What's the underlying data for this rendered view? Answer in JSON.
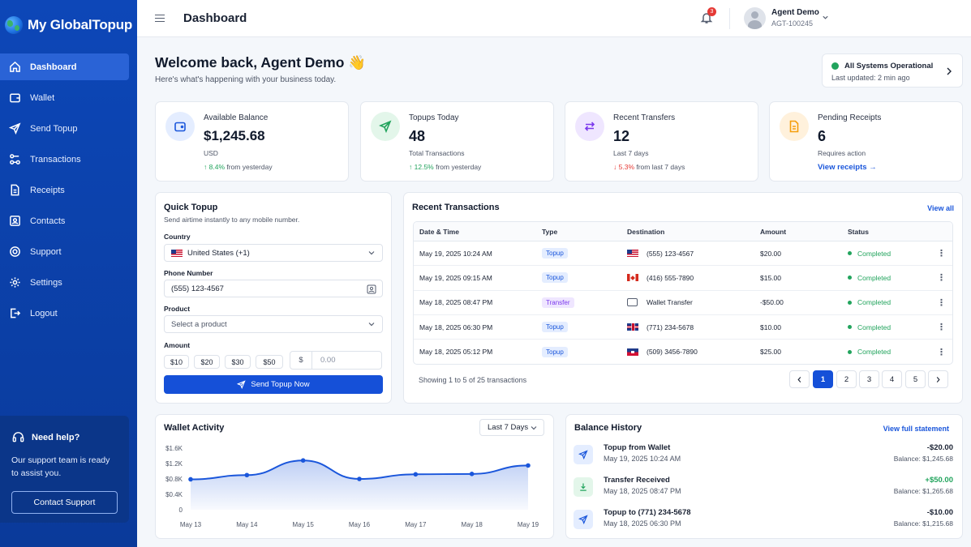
{
  "brand": {
    "name": "My GlobalTopup"
  },
  "sidebar": {
    "items": [
      {
        "label": "Dashboard",
        "icon": "home-icon"
      },
      {
        "label": "Wallet",
        "icon": "wallet-icon"
      },
      {
        "label": "Send Topup",
        "icon": "send-icon"
      },
      {
        "label": "Transactions",
        "icon": "transactions-icon"
      },
      {
        "label": "Receipts",
        "icon": "receipt-icon"
      },
      {
        "label": "Contacts",
        "icon": "contacts-icon"
      },
      {
        "label": "Support",
        "icon": "support-icon"
      },
      {
        "label": "Settings",
        "icon": "gear-icon"
      },
      {
        "label": "Logout",
        "icon": "logout-icon"
      }
    ],
    "help": {
      "title": "Need help?",
      "text": "Our support team is ready to assist you.",
      "button": "Contact Support"
    }
  },
  "header": {
    "title": "Dashboard",
    "notifications": "3",
    "user_name": "Agent Demo",
    "user_id": "AGT-100245"
  },
  "welcome": {
    "title": "Welcome back, Agent Demo 👋",
    "subtitle": "Here's what's happening with your business today."
  },
  "system_status": {
    "title": "All Systems Operational",
    "updated": "Last updated: 2 min ago"
  },
  "stats": [
    {
      "label": "Available Balance",
      "value": "$1,245.68",
      "sub": "USD",
      "trend_arrow": "↑",
      "trend_value": "8.4%",
      "trend_text": " from yesterday",
      "color": "#1a56db"
    },
    {
      "label": "Topups Today",
      "value": "48",
      "sub": "Total Transactions",
      "trend_arrow": "↑",
      "trend_value": "12.5%",
      "trend_text": " from yesterday",
      "color": "#22a45d"
    },
    {
      "label": "Recent Transfers",
      "value": "12",
      "sub": "Last 7 days",
      "trend_arrow": "↓",
      "trend_value": "5.3%",
      "trend_text": " from last 7 days",
      "color": "#7c3aed"
    },
    {
      "label": "Pending Receipts",
      "value": "6",
      "sub": "Requires action",
      "link": "View receipts →",
      "color": "#f59e0b"
    }
  ],
  "quick_topup": {
    "title": "Quick Topup",
    "subtitle": "Send airtime instantly to any mobile number.",
    "country_label": "Country",
    "country_value": "United States (+1)",
    "phone_label": "Phone Number",
    "phone_value": "(555) 123-4567",
    "product_label": "Product",
    "product_placeholder": "Select a product",
    "amount_label": "Amount",
    "amounts": [
      "$10",
      "$20",
      "$30",
      "$50"
    ],
    "currency": "$",
    "amount_placeholder": "0.00",
    "submit": "Send Topup Now"
  },
  "transactions": {
    "title": "Recent Transactions",
    "view_all": "View all",
    "columns": [
      "Date & Time",
      "Type",
      "Destination",
      "Amount",
      "Status"
    ],
    "rows": [
      {
        "date": "May 19, 2025 10:24 AM",
        "type": "Topup",
        "destination": "(555) 123-4567",
        "flag": "us",
        "amount": "$20.00",
        "status": "Completed"
      },
      {
        "date": "May 19, 2025 09:15 AM",
        "type": "Topup",
        "destination": "(416) 555-7890",
        "flag": "ca",
        "amount": "$15.00",
        "status": "Completed"
      },
      {
        "date": "May 18, 2025 08:47 PM",
        "type": "Transfer",
        "destination": "Wallet Transfer",
        "flag": "wallet",
        "amount": "-$50.00",
        "status": "Completed"
      },
      {
        "date": "May 18, 2025 06:30 PM",
        "type": "Topup",
        "destination": "(771) 234-5678",
        "flag": "uk",
        "amount": "$10.00",
        "status": "Completed"
      },
      {
        "date": "May 18, 2025 05:12 PM",
        "type": "Topup",
        "destination": "(509) 3456-7890",
        "flag": "ht",
        "amount": "$25.00",
        "status": "Completed"
      }
    ],
    "footer": "Showing 1 to 5 of 25 transactions",
    "pages": [
      "1",
      "2",
      "3",
      "4",
      "5"
    ],
    "current_page": "1"
  },
  "wallet_activity": {
    "title": "Wallet Activity",
    "range": "Last 7 Days"
  },
  "chart_data": {
    "type": "area",
    "x": [
      "May 13",
      "May 14",
      "May 15",
      "May 16",
      "May 17",
      "May 18",
      "May 19"
    ],
    "values": [
      790,
      900,
      1280,
      800,
      920,
      930,
      1150
    ],
    "ylim": [
      0,
      1600
    ],
    "y_ticks": [
      "0",
      "$0.4K",
      "$0.8K",
      "$1.2K",
      "$1.6K"
    ],
    "color": "#1a56db"
  },
  "balance_history": {
    "title": "Balance History",
    "link": "View full statement",
    "items": [
      {
        "title": "Topup from Wallet",
        "date": "May 19, 2025 10:24 AM",
        "amount": "-$20.00",
        "balance": "Balance: $1,245.68",
        "icon": "send-icon"
      },
      {
        "title": "Transfer Received",
        "date": "May 18, 2025 08:47 PM",
        "amount": "+$50.00",
        "balance": "Balance: $1,265.68",
        "icon": "download-icon"
      },
      {
        "title": "Topup to (771) 234-5678",
        "date": "May 18, 2025 06:30 PM",
        "amount": "-$10.00",
        "balance": "Balance: $1,215.68",
        "icon": "send-icon"
      }
    ]
  }
}
